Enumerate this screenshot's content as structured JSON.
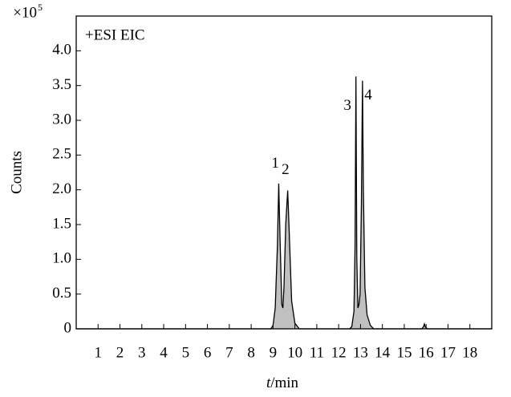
{
  "chart_data": {
    "type": "area",
    "annotation": "+ESI EIC",
    "ylabel": "Counts",
    "y_multiplier": {
      "base": "×10",
      "exponent": "5"
    },
    "xlabel": {
      "variable": "t",
      "unit": "/min"
    },
    "x": [
      0,
      8.9,
      9.0,
      9.1,
      9.2,
      9.26,
      9.32,
      9.4,
      9.45,
      9.5,
      9.58,
      9.67,
      9.75,
      9.85,
      10.0,
      10.2,
      12.5,
      12.6,
      12.7,
      12.75,
      12.79,
      12.83,
      12.88,
      12.93,
      12.98,
      13.04,
      13.09,
      13.13,
      13.2,
      13.3,
      13.45,
      13.6,
      15.8,
      15.88,
      15.92,
      15.96,
      16.05,
      19
    ],
    "values": [
      0,
      0,
      0.05,
      0.3,
      1.2,
      2.09,
      1.3,
      0.35,
      0.3,
      0.6,
      1.5,
      1.99,
      1.3,
      0.4,
      0.08,
      0,
      0,
      0.03,
      0.25,
      1.2,
      3.63,
      1.0,
      0.3,
      0.35,
      0.5,
      1.8,
      3.57,
      2.0,
      0.6,
      0.2,
      0.05,
      0,
      0,
      0.03,
      0.07,
      0.03,
      0,
      0
    ],
    "color": "#c0c0c0",
    "line_color": "#000000",
    "peak_labels": [
      {
        "label": "1",
        "x": 9.1,
        "y": 2.37
      },
      {
        "label": "2",
        "x": 9.57,
        "y": 2.28
      },
      {
        "label": "3",
        "x": 12.4,
        "y": 3.2
      },
      {
        "label": "4",
        "x": 13.35,
        "y": 3.35
      }
    ],
    "xlim": [
      0,
      19
    ],
    "xticks": [
      1,
      2,
      3,
      4,
      5,
      6,
      7,
      8,
      9,
      10,
      11,
      12,
      13,
      14,
      15,
      16,
      17,
      18
    ],
    "ylim": [
      0,
      4.5
    ],
    "yticks": [
      0,
      0.5,
      {
        "value": 1,
        "label": "1.0"
      },
      1.5,
      {
        "value": 2,
        "label": "2.0"
      },
      2.5,
      {
        "value": 3,
        "label": "3.0"
      },
      3.5,
      {
        "value": 4,
        "label": "4.0"
      }
    ],
    "grid": false
  }
}
